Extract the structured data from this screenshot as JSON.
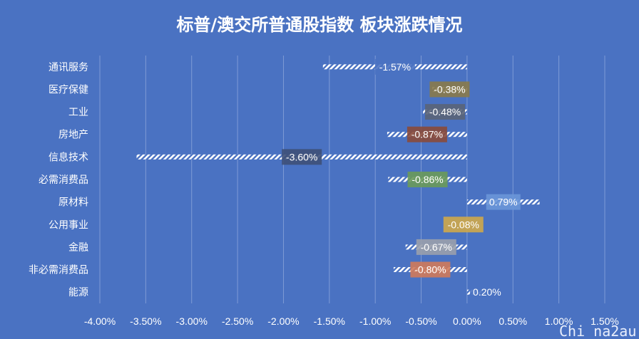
{
  "chart_data": {
    "type": "bar",
    "orientation": "horizontal",
    "title": "标普/澳交所普通股指数 板块涨跌情况",
    "categories": [
      "通讯服务",
      "医疗保健",
      "工业",
      "房地产",
      "信息技术",
      "必需消费品",
      "原材料",
      "公用事业",
      "金融",
      "非必需消费品",
      "能源"
    ],
    "values": [
      -1.57,
      -0.38,
      -0.48,
      -0.87,
      -3.6,
      -0.86,
      0.79,
      -0.08,
      -0.67,
      -0.8,
      0.2
    ],
    "data_labels": [
      "-1.57%",
      "-0.38%",
      "-0.48%",
      "-0.87%",
      "-3.60%",
      "-0.86%",
      "0.79%",
      "-0.08%",
      "-0.67%",
      "-0.80%",
      "0.20%"
    ],
    "label_colors": [
      "#4a72c2",
      "#8a7a4a",
      "#5a6478",
      "#8a4a3a",
      "#3e5078",
      "#6a9a5a",
      "#6a96d8",
      "#cfa84a",
      "#9aa0ac",
      "#d07a5a",
      "#4a72c2"
    ],
    "tick_labels": [
      "-4.00%",
      "-3.50%",
      "-3.00%",
      "-2.50%",
      "-2.00%",
      "-1.50%",
      "-1.00%",
      "-0.50%",
      "0.00%",
      "0.50%",
      "1.00%",
      "1.50%"
    ],
    "xlim": [
      -4.0,
      1.5
    ],
    "grid": true,
    "legend": "none"
  },
  "watermark": "Chi na2au"
}
